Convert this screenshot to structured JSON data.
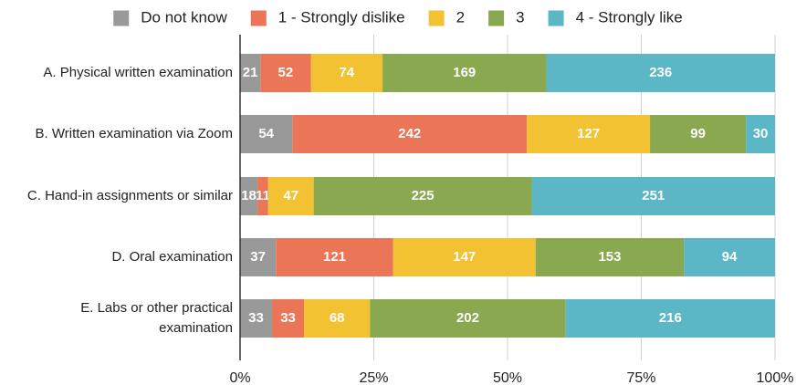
{
  "chart_data": {
    "type": "bar",
    "orientation": "horizontal",
    "stacked": "percent",
    "title": "",
    "xlabel": "",
    "ylabel": "",
    "xlim": [
      0,
      100
    ],
    "x_ticks": [
      "0%",
      "25%",
      "50%",
      "75%",
      "100%"
    ],
    "grid": true,
    "legend_position": "top",
    "categories": [
      [
        "A. Physical written examination"
      ],
      [
        "B. Written examination via Zoom"
      ],
      [
        "C. Hand-in assignments or similar"
      ],
      [
        "D. Oral examination"
      ],
      [
        "E. Labs or other practical",
        "examination"
      ]
    ],
    "series": [
      {
        "name": "Do not know",
        "color": "#999999",
        "values": [
          21,
          54,
          18,
          37,
          33
        ]
      },
      {
        "name": "1 - Strongly dislike",
        "color": "#eb7557",
        "values": [
          52,
          242,
          11,
          121,
          33
        ]
      },
      {
        "name": "2",
        "color": "#f2c232",
        "values": [
          74,
          127,
          47,
          147,
          68
        ]
      },
      {
        "name": "3",
        "color": "#89a84f",
        "values": [
          169,
          99,
          225,
          153,
          202
        ]
      },
      {
        "name": "4 - Strongly like",
        "color": "#5bb6c6",
        "values": [
          236,
          30,
          251,
          94,
          216
        ]
      }
    ]
  }
}
